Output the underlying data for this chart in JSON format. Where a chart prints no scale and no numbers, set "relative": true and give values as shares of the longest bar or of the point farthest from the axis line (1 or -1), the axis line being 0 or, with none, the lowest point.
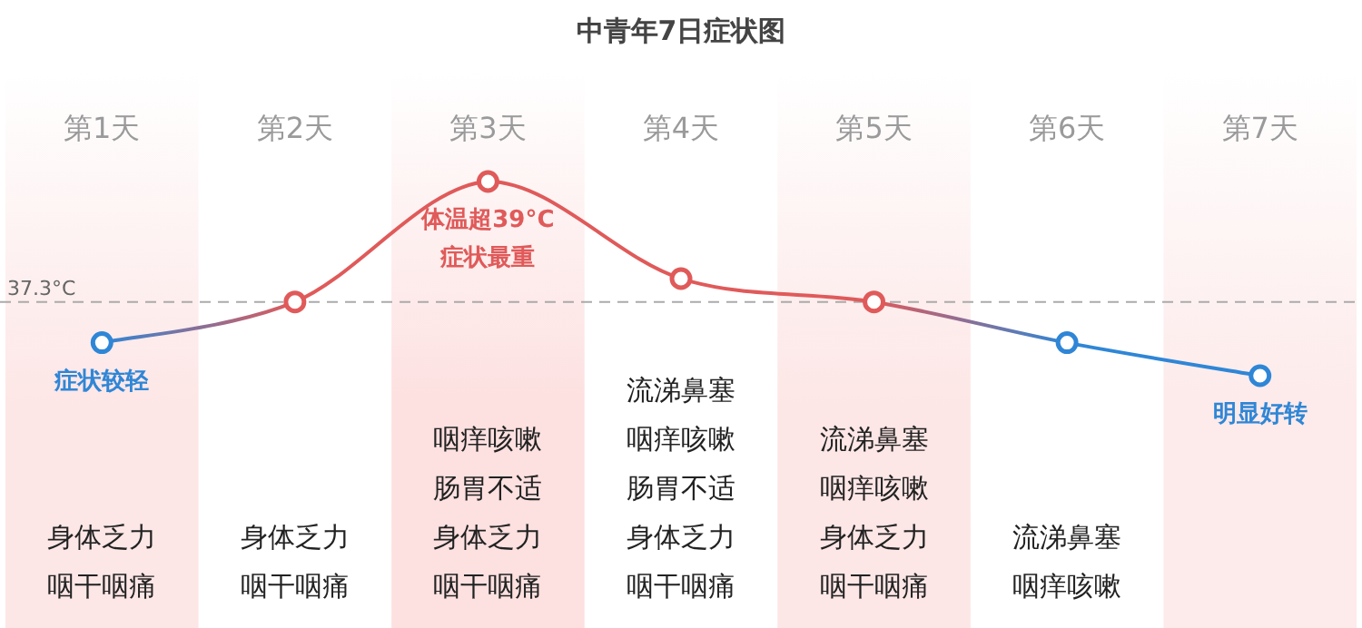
{
  "chart_data": {
    "type": "line",
    "title": "中青年7日症状图",
    "relative": true,
    "marker": "circle",
    "grid": false,
    "legend": false,
    "categories": [
      "第1天",
      "第2天",
      "第3天",
      "第4天",
      "第5天",
      "第6天",
      "第7天"
    ],
    "series": [
      {
        "color": "#e05a5a",
        "colors": [
          "#2f86d6",
          null,
          null,
          null,
          null,
          "#2f86d6",
          "#2f86d6"
        ],
        "values": [
          0.17,
          0.38,
          1,
          0.5,
          0.38,
          0.17,
          0
        ]
      }
    ],
    "ref_lines": [
      {
        "axis": "y",
        "value": 0.38,
        "label": "37.3°C",
        "color": "#aaaaaa",
        "line_style": "dashed"
      }
    ],
    "bands": [
      {
        "axis": "x",
        "from": "第1天",
        "to": "第1天",
        "color": "#fde6e6"
      },
      {
        "axis": "x",
        "from": "第3天",
        "to": "第3天",
        "color": "#fde0e0"
      },
      {
        "axis": "x",
        "from": "第5天",
        "to": "第5天",
        "color": "#fde6e6"
      },
      {
        "axis": "x",
        "from": "第7天",
        "to": "第7天",
        "color": "#fdeaea"
      }
    ],
    "annotations": [
      {
        "text": "症状较轻",
        "x": "第1天",
        "y": 0.17
      },
      {
        "text": "体温超39°C",
        "x": "第3天",
        "y": 1
      },
      {
        "text": "症状最重",
        "x": "第3天",
        "y": 1
      },
      {
        "text": "明显好转",
        "x": "第7天",
        "y": 0
      },
      "身体乏力咽干咽痛",
      "身体乏力咽干咽痛",
      "咽痒咳嗽肠胃不适身体乏力咽干咽痛",
      "流涕鼻塞咽痒咳嗽肠胃不适身体乏力咽干咽痛",
      "流涕鼻塞咽痒咳嗽身体乏力咽干咽痛",
      "流涕鼻塞咽痒咳嗽"
    ]
  }
}
